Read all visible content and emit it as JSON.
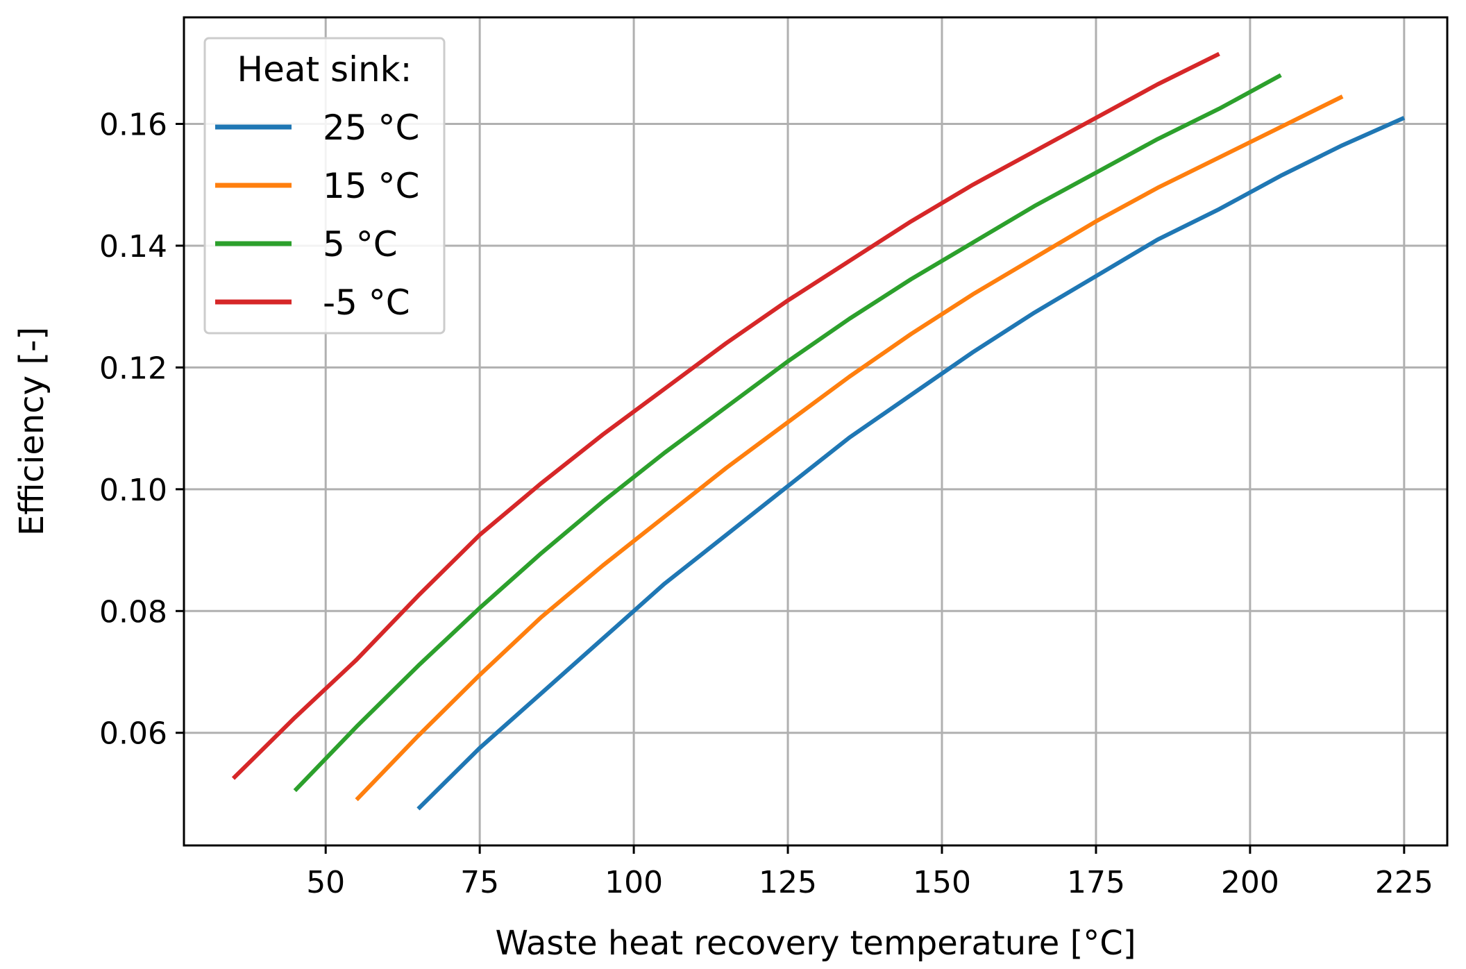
{
  "chart_data": {
    "type": "line",
    "title": "",
    "xlabel": "Waste heat recovery temperature [°C]",
    "ylabel": "Efficiency [-]",
    "xlim": [
      27,
      232
    ],
    "ylim": [
      0.0415,
      0.1775
    ],
    "xticks": [
      50,
      75,
      100,
      125,
      150,
      175,
      200,
      225
    ],
    "yticks": [
      0.06,
      0.08,
      0.1,
      0.12,
      0.14,
      0.16
    ],
    "ytick_labels": [
      "0.06",
      "0.08",
      "0.10",
      "0.12",
      "0.14",
      "0.16"
    ],
    "grid": true,
    "legend": {
      "title": "Heat sink:",
      "location": "upper left"
    },
    "series": [
      {
        "name": "25 °C",
        "color": "#1f77b4",
        "x": [
          65,
          75,
          85,
          95,
          105,
          115,
          125,
          135,
          145,
          155,
          165,
          175,
          185,
          195,
          205,
          215,
          225
        ],
        "y": [
          0.0475,
          0.0575,
          0.0665,
          0.0755,
          0.0845,
          0.0925,
          0.1005,
          0.1085,
          0.1155,
          0.1225,
          0.129,
          0.135,
          0.141,
          0.146,
          0.1515,
          0.1565,
          0.161
        ]
      },
      {
        "name": "15 °C",
        "color": "#ff7f0e",
        "x": [
          55,
          65,
          75,
          85,
          95,
          105,
          115,
          125,
          135,
          145,
          155,
          165,
          175,
          185,
          195,
          205,
          215
        ],
        "y": [
          0.049,
          0.0595,
          0.0695,
          0.079,
          0.0875,
          0.0955,
          0.1035,
          0.111,
          0.1185,
          0.1255,
          0.132,
          0.138,
          0.144,
          0.1495,
          0.1545,
          0.1595,
          0.1645
        ]
      },
      {
        "name": "5 °C",
        "color": "#2ca02c",
        "x": [
          45,
          55,
          65,
          75,
          85,
          95,
          105,
          115,
          125,
          135,
          145,
          155,
          165,
          175,
          185,
          195,
          205
        ],
        "y": [
          0.0505,
          0.061,
          0.071,
          0.0805,
          0.0895,
          0.098,
          0.106,
          0.1135,
          0.121,
          0.128,
          0.1345,
          0.1405,
          0.1465,
          0.152,
          0.1575,
          0.1625,
          0.168
        ]
      },
      {
        "name": "-5 °C",
        "color": "#d62728",
        "x": [
          35,
          45,
          55,
          65,
          75,
          85,
          95,
          105,
          115,
          125,
          135,
          145,
          155,
          165,
          175,
          185,
          195
        ],
        "y": [
          0.0525,
          0.0625,
          0.072,
          0.0825,
          0.0925,
          0.101,
          0.109,
          0.1165,
          0.124,
          0.131,
          0.1375,
          0.144,
          0.15,
          0.1555,
          0.161,
          0.1665,
          0.1715
        ]
      }
    ]
  }
}
